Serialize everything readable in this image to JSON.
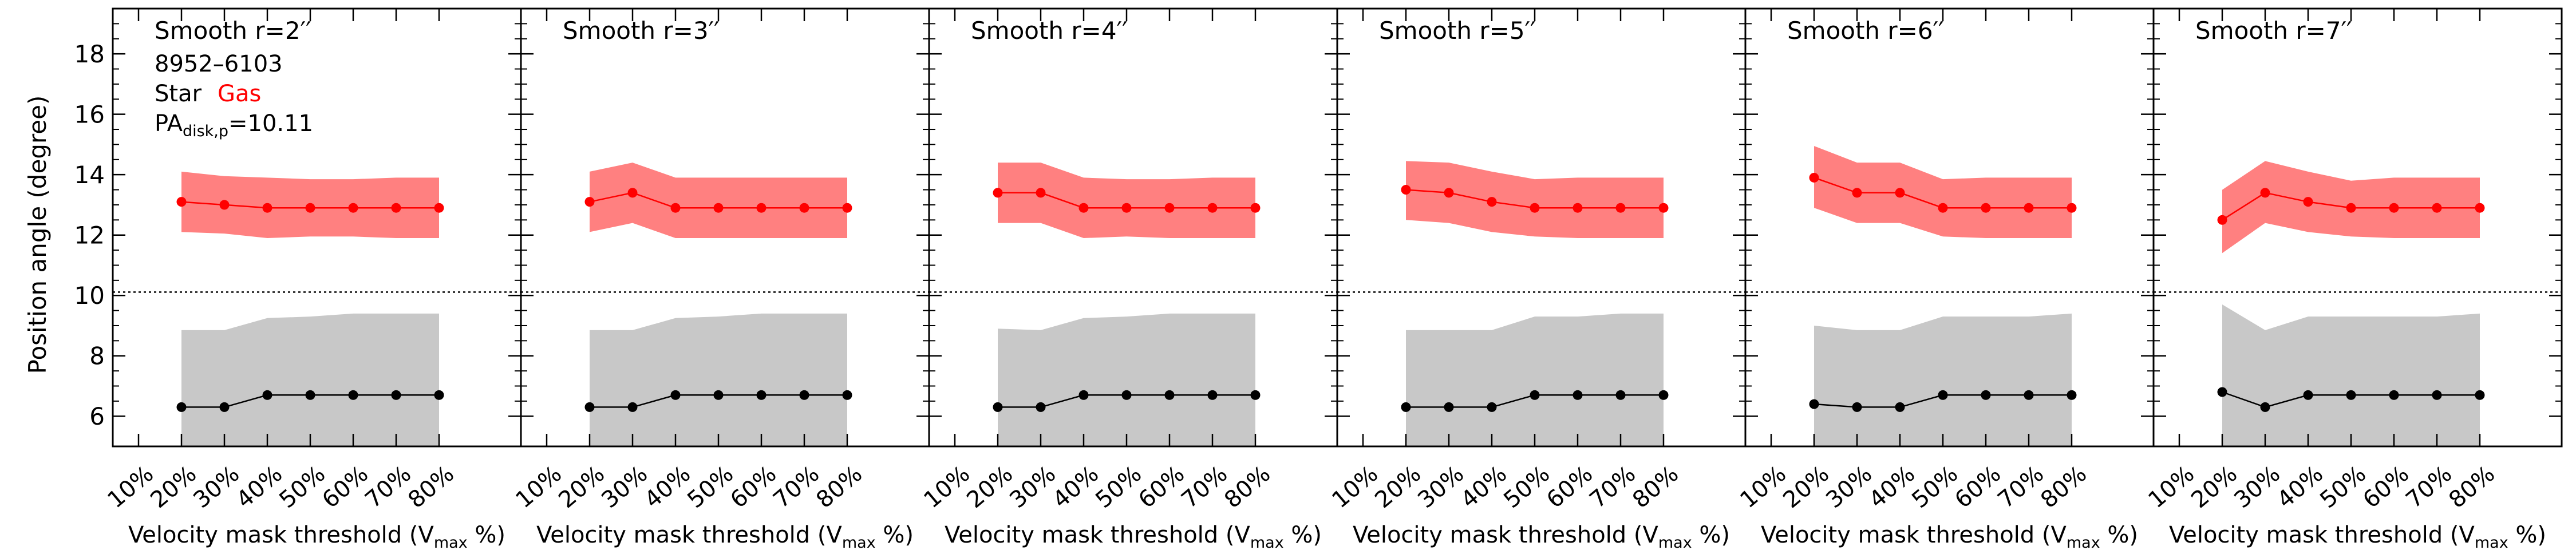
{
  "figure": {
    "y_axis_label": "Position angle (degree)",
    "x_axis_label_prefix": "Velocity mask threshold (V",
    "x_axis_label_sub": "max",
    "x_axis_label_suffix": " %)",
    "info": {
      "plate_ifu": "8952–6103",
      "legend_star": "Star",
      "legend_gas": "Gas",
      "pa_prefix": "PA",
      "pa_sub": "disk,p",
      "pa_value_text": "=10.11"
    },
    "colors": {
      "gas": "#ff0000",
      "gas_band": "#ff8080",
      "star": "#000000",
      "star_band": "#c8c8c8"
    }
  },
  "chart_data": [
    {
      "type": "line",
      "title": "Smooth r=2′′",
      "xlabel": "Velocity mask threshold (Vmax %)",
      "ylabel": "Position angle (degree)",
      "categories": [
        "10%",
        "20%",
        "30%",
        "40%",
        "50%",
        "60%",
        "70%",
        "80%"
      ],
      "ylim": [
        5,
        19.5
      ],
      "yticks": [
        6,
        8,
        10,
        12,
        14,
        16,
        18
      ],
      "reference_line": 10.11,
      "series": [
        {
          "name": "Gas",
          "values": [
            null,
            13.1,
            13.0,
            12.9,
            12.9,
            12.9,
            12.9,
            12.9
          ],
          "band_low": [
            null,
            12.1,
            12.05,
            11.9,
            11.95,
            11.95,
            11.9,
            11.9
          ],
          "band_high": [
            null,
            14.1,
            13.95,
            13.9,
            13.85,
            13.85,
            13.9,
            13.9
          ]
        },
        {
          "name": "Star",
          "values": [
            null,
            6.3,
            6.3,
            6.7,
            6.7,
            6.7,
            6.7,
            6.7
          ],
          "band_low": [
            null,
            5.0,
            5.0,
            5.0,
            5.0,
            5.0,
            5.0,
            5.0
          ],
          "band_high": [
            null,
            8.85,
            8.85,
            9.25,
            9.3,
            9.4,
            9.4,
            9.4
          ]
        }
      ]
    },
    {
      "type": "line",
      "title": "Smooth r=3′′",
      "xlabel": "Velocity mask threshold (Vmax %)",
      "categories": [
        "10%",
        "20%",
        "30%",
        "40%",
        "50%",
        "60%",
        "70%",
        "80%"
      ],
      "ylim": [
        5,
        19.5
      ],
      "reference_line": 10.11,
      "series": [
        {
          "name": "Gas",
          "values": [
            null,
            13.1,
            13.4,
            12.9,
            12.9,
            12.9,
            12.9,
            12.9
          ],
          "band_low": [
            null,
            12.1,
            12.4,
            11.9,
            11.9,
            11.9,
            11.9,
            11.9
          ],
          "band_high": [
            null,
            14.1,
            14.4,
            13.9,
            13.9,
            13.9,
            13.9,
            13.9
          ]
        },
        {
          "name": "Star",
          "values": [
            null,
            6.3,
            6.3,
            6.7,
            6.7,
            6.7,
            6.7,
            6.7
          ],
          "band_low": [
            null,
            5.0,
            5.0,
            5.0,
            5.0,
            5.0,
            5.0,
            5.0
          ],
          "band_high": [
            null,
            8.85,
            8.85,
            9.25,
            9.3,
            9.4,
            9.4,
            9.4
          ]
        }
      ]
    },
    {
      "type": "line",
      "title": "Smooth r=4′′",
      "xlabel": "Velocity mask threshold (Vmax %)",
      "categories": [
        "10%",
        "20%",
        "30%",
        "40%",
        "50%",
        "60%",
        "70%",
        "80%"
      ],
      "ylim": [
        5,
        19.5
      ],
      "reference_line": 10.11,
      "series": [
        {
          "name": "Gas",
          "values": [
            null,
            13.4,
            13.4,
            12.9,
            12.9,
            12.9,
            12.9,
            12.9
          ],
          "band_low": [
            null,
            12.4,
            12.4,
            11.9,
            11.95,
            11.9,
            11.9,
            11.9
          ],
          "band_high": [
            null,
            14.4,
            14.4,
            13.9,
            13.85,
            13.85,
            13.9,
            13.9
          ]
        },
        {
          "name": "Star",
          "values": [
            null,
            6.3,
            6.3,
            6.7,
            6.7,
            6.7,
            6.7,
            6.7
          ],
          "band_low": [
            null,
            5.0,
            5.0,
            5.0,
            5.0,
            5.0,
            5.0,
            5.0
          ],
          "band_high": [
            null,
            8.9,
            8.85,
            9.25,
            9.3,
            9.4,
            9.4,
            9.4
          ]
        }
      ]
    },
    {
      "type": "line",
      "title": "Smooth r=5′′",
      "xlabel": "Velocity mask threshold (Vmax %)",
      "categories": [
        "10%",
        "20%",
        "30%",
        "40%",
        "50%",
        "60%",
        "70%",
        "80%"
      ],
      "ylim": [
        5,
        19.5
      ],
      "reference_line": 10.11,
      "series": [
        {
          "name": "Gas",
          "values": [
            null,
            13.5,
            13.4,
            13.1,
            12.9,
            12.9,
            12.9,
            12.9
          ],
          "band_low": [
            null,
            12.5,
            12.4,
            12.1,
            11.95,
            11.9,
            11.9,
            11.9
          ],
          "band_high": [
            null,
            14.45,
            14.4,
            14.1,
            13.85,
            13.9,
            13.9,
            13.9
          ]
        },
        {
          "name": "Star",
          "values": [
            null,
            6.3,
            6.3,
            6.3,
            6.7,
            6.7,
            6.7,
            6.7
          ],
          "band_low": [
            null,
            5.0,
            5.0,
            5.0,
            5.0,
            5.0,
            5.0,
            5.0
          ],
          "band_high": [
            null,
            8.85,
            8.85,
            8.85,
            9.3,
            9.3,
            9.4,
            9.4
          ]
        }
      ]
    },
    {
      "type": "line",
      "title": "Smooth r=6′′",
      "xlabel": "Velocity mask threshold (Vmax %)",
      "categories": [
        "10%",
        "20%",
        "30%",
        "40%",
        "50%",
        "60%",
        "70%",
        "80%"
      ],
      "ylim": [
        5,
        19.5
      ],
      "reference_line": 10.11,
      "series": [
        {
          "name": "Gas",
          "values": [
            null,
            13.9,
            13.4,
            13.4,
            12.9,
            12.9,
            12.9,
            12.9
          ],
          "band_low": [
            null,
            12.9,
            12.4,
            12.4,
            11.95,
            11.9,
            11.9,
            11.9
          ],
          "band_high": [
            null,
            14.95,
            14.4,
            14.4,
            13.85,
            13.9,
            13.9,
            13.9
          ]
        },
        {
          "name": "Star",
          "values": [
            null,
            6.4,
            6.3,
            6.3,
            6.7,
            6.7,
            6.7,
            6.7
          ],
          "band_low": [
            null,
            5.0,
            5.0,
            5.0,
            5.0,
            5.0,
            5.0,
            5.0
          ],
          "band_high": [
            null,
            9.0,
            8.85,
            8.85,
            9.3,
            9.3,
            9.3,
            9.4
          ]
        }
      ]
    },
    {
      "type": "line",
      "title": "Smooth r=7′′",
      "xlabel": "Velocity mask threshold (Vmax %)",
      "categories": [
        "10%",
        "20%",
        "30%",
        "40%",
        "50%",
        "60%",
        "70%",
        "80%"
      ],
      "ylim": [
        5,
        19.5
      ],
      "reference_line": 10.11,
      "series": [
        {
          "name": "Gas",
          "values": [
            null,
            12.5,
            13.4,
            13.1,
            12.9,
            12.9,
            12.9,
            12.9
          ],
          "band_low": [
            null,
            11.4,
            12.4,
            12.1,
            11.95,
            11.9,
            11.9,
            11.9
          ],
          "band_high": [
            null,
            13.5,
            14.45,
            14.1,
            13.8,
            13.9,
            13.9,
            13.9
          ]
        },
        {
          "name": "Star",
          "values": [
            null,
            6.8,
            6.3,
            6.7,
            6.7,
            6.7,
            6.7,
            6.7
          ],
          "band_low": [
            null,
            5.0,
            5.0,
            5.0,
            5.0,
            5.0,
            5.0,
            5.0
          ],
          "band_high": [
            null,
            9.7,
            8.85,
            9.3,
            9.3,
            9.3,
            9.3,
            9.4
          ]
        }
      ]
    }
  ]
}
